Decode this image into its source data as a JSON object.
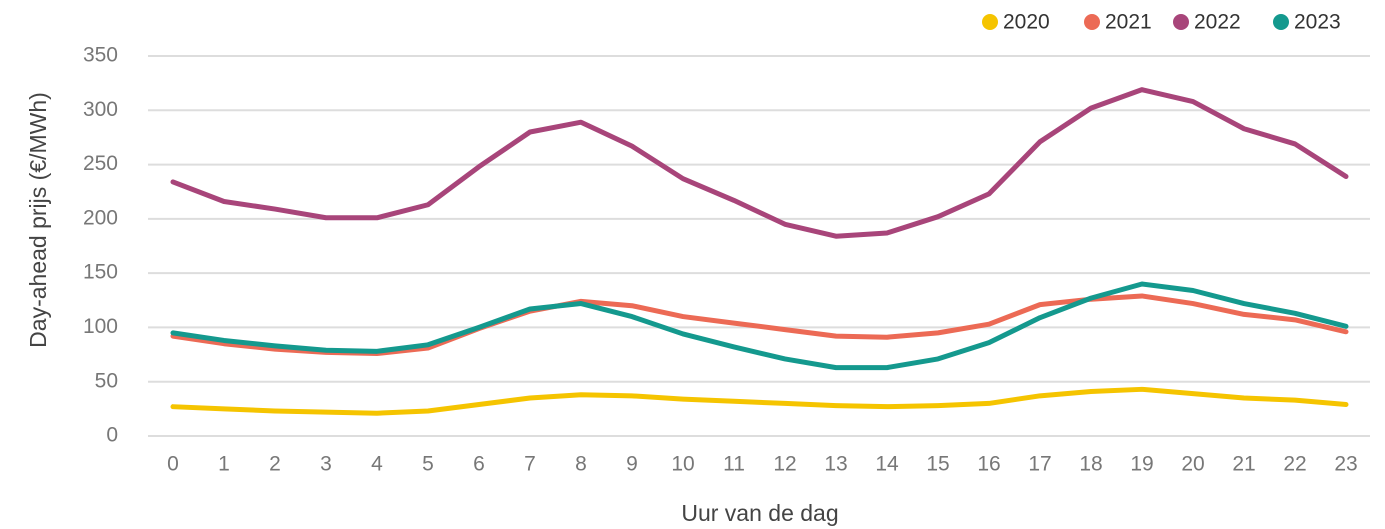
{
  "chart_data": {
    "type": "line",
    "xlabel": "Uur van de dag",
    "ylabel": "Day-ahead prijs (€/MWh)",
    "categories": [
      "0",
      "1",
      "2",
      "3",
      "4",
      "5",
      "6",
      "7",
      "8",
      "9",
      "10",
      "11",
      "12",
      "13",
      "14",
      "15",
      "16",
      "17",
      "18",
      "19",
      "20",
      "21",
      "22",
      "23"
    ],
    "series": [
      {
        "name": "2020",
        "color": "#f5c400",
        "values": [
          27,
          25,
          23,
          22,
          21,
          23,
          29,
          35,
          38,
          37,
          34,
          32,
          30,
          28,
          27,
          28,
          30,
          37,
          41,
          43,
          39,
          35,
          33,
          29
        ]
      },
      {
        "name": "2021",
        "color": "#ec6a55",
        "values": [
          92,
          85,
          80,
          77,
          76,
          81,
          99,
          115,
          124,
          120,
          110,
          104,
          98,
          92,
          91,
          95,
          103,
          121,
          126,
          129,
          122,
          112,
          107,
          96
        ]
      },
      {
        "name": "2022",
        "color": "#a8457a",
        "values": [
          234,
          216,
          209,
          201,
          201,
          213,
          248,
          280,
          289,
          267,
          237,
          217,
          195,
          184,
          187,
          202,
          223,
          271,
          302,
          319,
          308,
          283,
          269,
          239
        ]
      },
      {
        "name": "2023",
        "color": "#14998e",
        "values": [
          95,
          88,
          83,
          79,
          78,
          84,
          100,
          117,
          122,
          110,
          94,
          82,
          71,
          63,
          63,
          71,
          86,
          109,
          127,
          140,
          134,
          122,
          113,
          101
        ]
      }
    ],
    "ylim": [
      0,
      350
    ],
    "yticks": [
      0,
      50,
      100,
      150,
      200,
      250,
      300,
      350
    ],
    "grid": true,
    "legend": "top-right"
  }
}
